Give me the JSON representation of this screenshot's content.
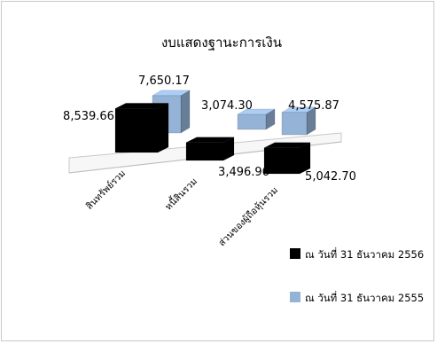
{
  "chart_data": {
    "type": "bar",
    "title": "งบแสดงฐานะการเงิน",
    "categories": [
      "สินทรัพย์รวม",
      "หนี้สินรวม",
      "ส่วนของผู้ถือหุ้นรวม"
    ],
    "series": [
      {
        "name": "ณ วันที่ 31 ธันวาคม 2556",
        "color": "#000000",
        "values": [
          8539.66,
          3496.96,
          5042.7
        ],
        "labels": [
          "8,539.66",
          "3,496.96",
          "5,042.70"
        ]
      },
      {
        "name": "ณ วันที่ 31 ธันวาคม 2555",
        "color": "#95b3d7",
        "values": [
          7650.17,
          3074.3,
          4575.87
        ],
        "labels": [
          "7,650.17",
          "3,074.30",
          "4,575.87"
        ]
      }
    ],
    "legend_position": "right",
    "grid": false,
    "three_d": true
  }
}
